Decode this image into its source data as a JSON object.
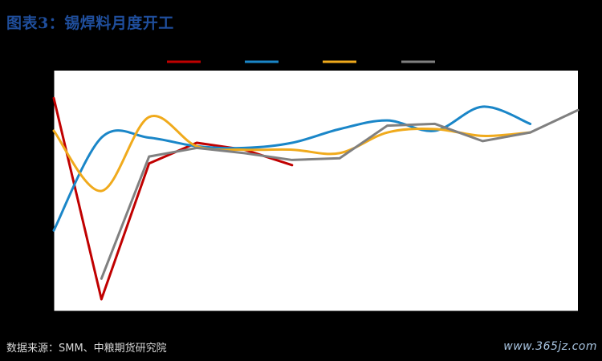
{
  "header": {
    "title": "图表3：锡焊料月度开工"
  },
  "footer": {
    "source": "数据来源：SMM、中粮期货研究院",
    "watermark": "www.365jz.com"
  },
  "chart_data": {
    "type": "line",
    "title": "图表3：锡焊料月度开工",
    "x": [
      1,
      2,
      3,
      4,
      5,
      6,
      7,
      8,
      9,
      10,
      11,
      12
    ],
    "ylim": [
      0,
      7
    ],
    "grid": false,
    "legend_position": "top",
    "series": [
      {
        "color": "#c00000",
        "smooth": false,
        "values": [
          6.2,
          0.35,
          4.3,
          4.9,
          4.7,
          4.25,
          null,
          null,
          null,
          null,
          null,
          null
        ]
      },
      {
        "color": "#1a86c8",
        "smooth": true,
        "values": [
          2.35,
          5.05,
          5.05,
          4.8,
          4.75,
          4.9,
          5.3,
          5.55,
          5.25,
          5.95,
          5.45,
          null
        ]
      },
      {
        "color": "#f0aa1c",
        "smooth": true,
        "values": [
          5.25,
          3.5,
          5.65,
          4.8,
          4.7,
          4.7,
          4.6,
          5.2,
          5.3,
          5.1,
          5.2,
          null
        ]
      },
      {
        "color": "#808080",
        "smooth": false,
        "values": [
          null,
          0.95,
          4.5,
          4.75,
          4.6,
          4.4,
          4.45,
          5.4,
          5.45,
          4.95,
          5.2,
          5.85
        ]
      }
    ]
  }
}
